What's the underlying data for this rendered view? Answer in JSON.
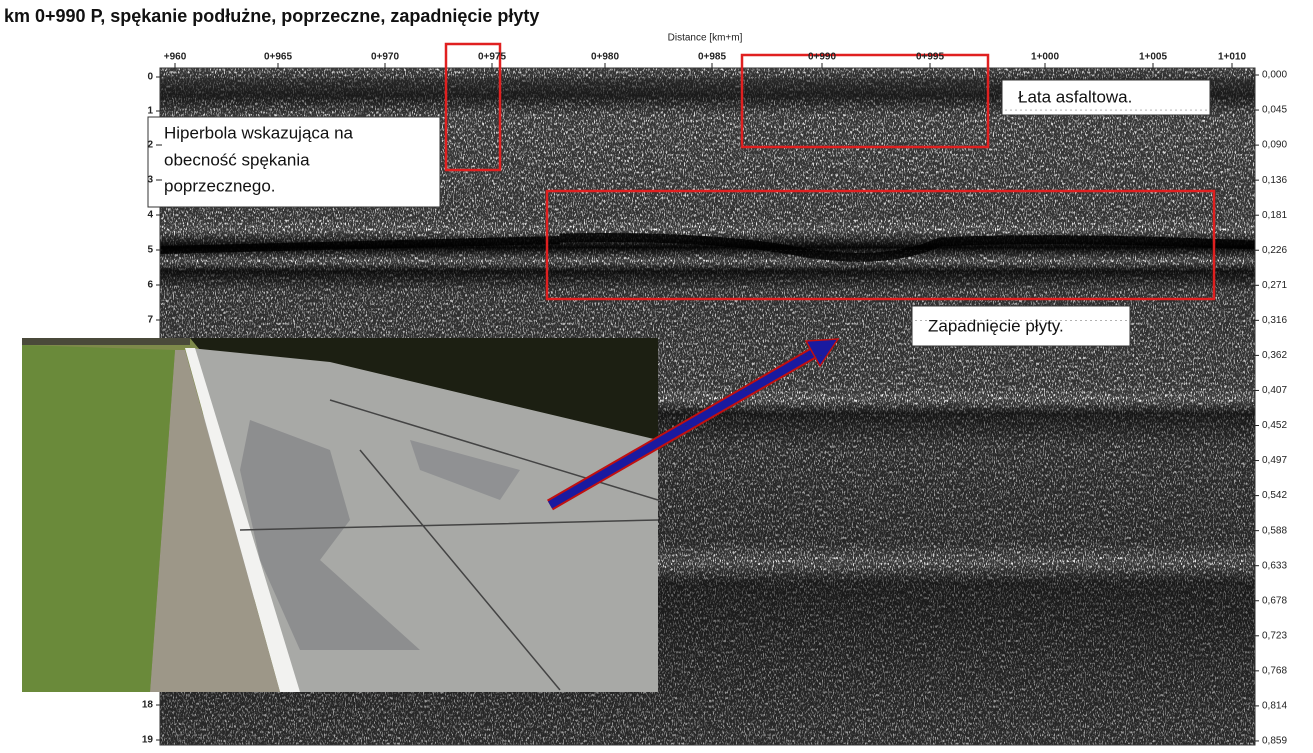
{
  "title": "km 0+990 P, spękanie podłużne, poprzeczne, zapadnięcie płyty",
  "x_axis_label": "Distance [km+m]",
  "top_ticks": [
    "+960",
    "0+965",
    "0+970",
    "0+975",
    "0+980",
    "0+985",
    "0+990",
    "0+995",
    "1+000",
    "1+005",
    "1+010"
  ],
  "left_ticks": [
    "0",
    "1",
    "2",
    "3",
    "4",
    "5",
    "6",
    "7",
    "18",
    "19"
  ],
  "right_ticks": [
    "0,000",
    "0,045",
    "0,090",
    "0,136",
    "0,181",
    "0,226",
    "0,271",
    "0,316",
    "0,362",
    "0,407",
    "0,452",
    "0,497",
    "0,542",
    "0,588",
    "0,633",
    "0,678",
    "0,723",
    "0,768",
    "0,814",
    "0,859"
  ],
  "annotations": {
    "hyperbola": [
      "Hiperbola wskazująca na",
      "obecność spękania",
      "poprzecznego."
    ],
    "patch": "Łata asfaltowa.",
    "subsidence": "Zapadnięcie płyty."
  }
}
